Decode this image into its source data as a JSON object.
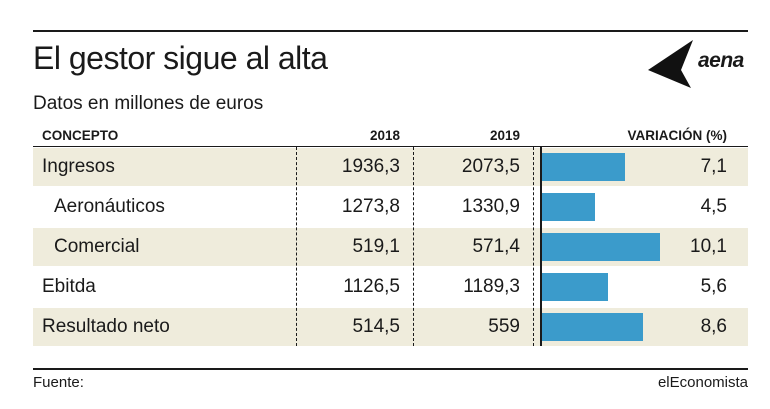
{
  "header": {
    "title": "El gestor sigue al alta",
    "subtitle": "Datos en millones de euros",
    "logo_text": "aena"
  },
  "table": {
    "columns": [
      "CONCEPTO",
      "2018",
      "2019",
      "VARIACIÓN (%)"
    ],
    "rows": [
      {
        "label": "Ingresos",
        "v2018": "1936,3",
        "v2019": "2073,5",
        "variation": "7,1"
      },
      {
        "label": "Aeronáuticos",
        "v2018": "1273,8",
        "v2019": "1330,9",
        "variation": "4,5"
      },
      {
        "label": "Comercial",
        "v2018": "519,1",
        "v2019": "571,4",
        "variation": "10,1"
      },
      {
        "label": "Ebitda",
        "v2018": "1126,5",
        "v2019": "1189,3",
        "variation": "5,6"
      },
      {
        "label": "Resultado neto",
        "v2018": "514,5",
        "v2019": "559",
        "variation": "8,6"
      }
    ]
  },
  "chart_data": {
    "type": "bar",
    "categories": [
      "Ingresos",
      "Aeronáuticos",
      "Comercial",
      "Ebitda",
      "Resultado neto"
    ],
    "values": [
      7.1,
      4.5,
      10.1,
      5.6,
      8.6
    ],
    "xlabel": "VARIACIÓN (%)",
    "bar_color": "#3b9bcb"
  },
  "footer": {
    "source": "Fuente:",
    "publisher": "elEconomista"
  },
  "colors": {
    "shaded_row": "#efecdc",
    "bar": "#3b9bcb",
    "text": "#1a1a1a"
  }
}
